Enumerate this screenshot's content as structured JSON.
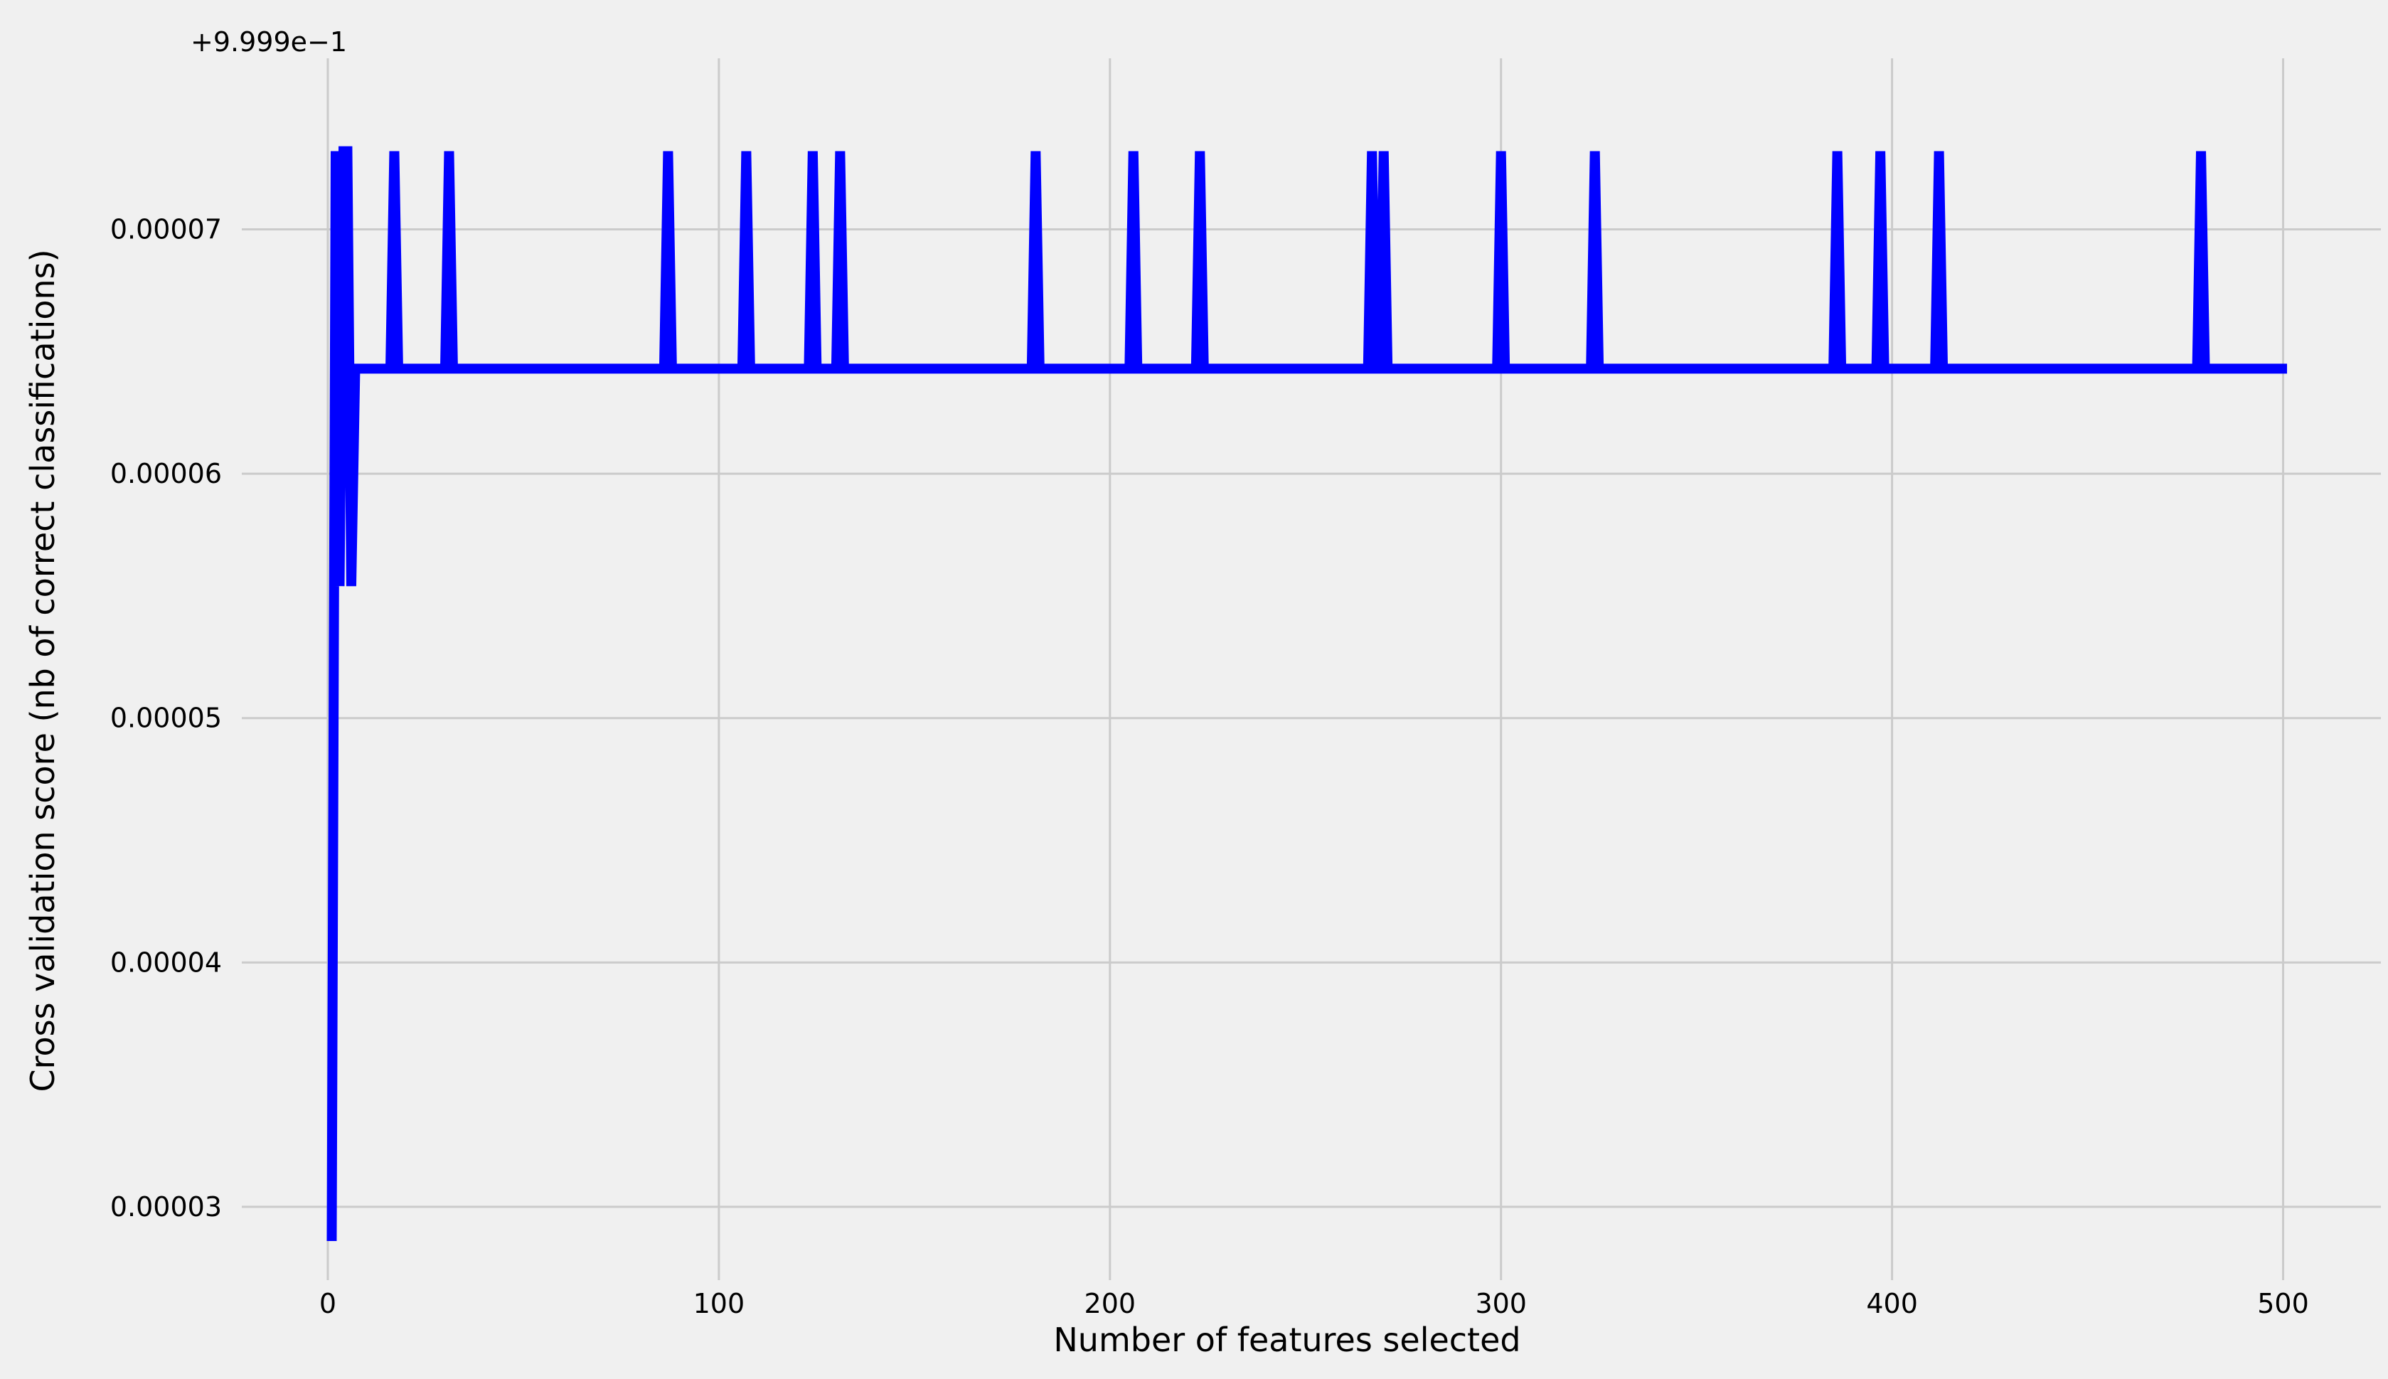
{
  "chart_data": {
    "type": "line",
    "title": "",
    "xlabel": "Number of features selected",
    "ylabel": "Cross validation score (nb of correct classifications)",
    "y_offset_text": "+9.999e−1",
    "xlim": [
      -22,
      525
    ],
    "ylim": [
      2.7e-05,
      7.7e-05
    ],
    "x_ticks": [
      0,
      100,
      200,
      300,
      400,
      500
    ],
    "x_tick_labels": [
      "0",
      "100",
      "200",
      "300",
      "400",
      "500"
    ],
    "y_ticks": [
      3e-05,
      4e-05,
      5e-05,
      6e-05,
      7e-05
    ],
    "y_tick_labels": [
      "0.00003",
      "0.00004",
      "0.00005",
      "0.00006",
      "0.00007"
    ],
    "grid": true,
    "line_color": "#0000ff",
    "x_start": 1,
    "x_end": 501,
    "baseline_value": 6.43e-05,
    "peak_value": 7.32e-05,
    "initial_points": [
      {
        "x": 1,
        "y": 2.86e-05
      },
      {
        "x": 2,
        "y": 7.32e-05
      },
      {
        "x": 3,
        "y": 5.54e-05
      },
      {
        "x": 4,
        "y": 7.32e-05
      },
      {
        "x": 5,
        "y": 7.32e-05
      },
      {
        "x": 6,
        "y": 5.54e-05
      },
      {
        "x": 7,
        "y": 6.43e-05
      }
    ],
    "peak_x": [
      17,
      31,
      87,
      107,
      124,
      131,
      181,
      206,
      223,
      267,
      270,
      300,
      324,
      386,
      397,
      412,
      479
    ]
  }
}
